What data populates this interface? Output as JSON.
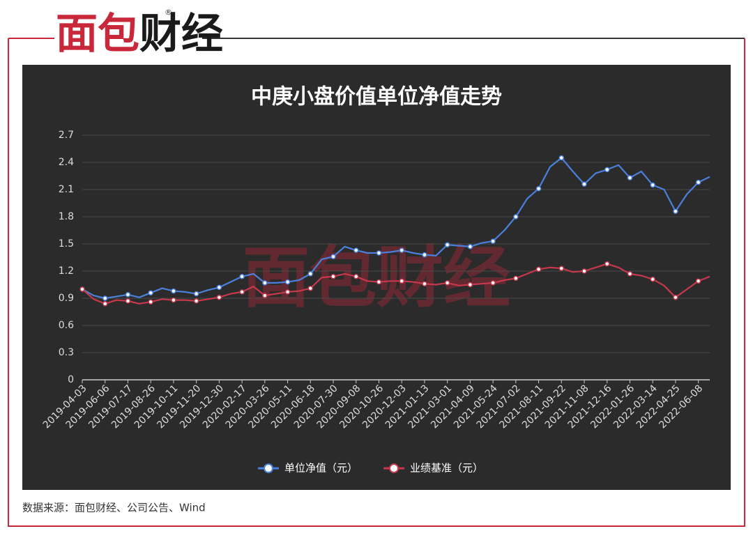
{
  "logo": [
    "面包",
    "财经"
  ],
  "logo_mark": "®",
  "watermark": "面包财经",
  "source": "数据来源：面包财经、公司公告、Wind",
  "chart_data": {
    "type": "line",
    "title": "中庚小盘价值单位净值走势",
    "categories": [
      "2019-04-03",
      null,
      "2019-06-06",
      null,
      "2019-07-17",
      null,
      "2019-08-26",
      null,
      "2019-10-11",
      null,
      "2019-11-20",
      null,
      "2019-12-30",
      null,
      "2020-02-17",
      null,
      "2020-03-26",
      null,
      "2020-05-11",
      null,
      "2020-06-18",
      null,
      "2020-07-30",
      null,
      "2020-09-08",
      null,
      "2020-10-26",
      null,
      "2020-12-03",
      null,
      "2021-01-13",
      null,
      "2021-03-01",
      null,
      "2021-04-09",
      null,
      "2021-05-24",
      null,
      "2021-07-02",
      null,
      "2021-08-11",
      null,
      "2021-09-22",
      null,
      "2021-11-08",
      null,
      "2021-12-16",
      null,
      "2022-01-26",
      null,
      "2022-03-14",
      null,
      "2022-04-25",
      null,
      "2022-06-08",
      null
    ],
    "series": [
      {
        "name": "单位净值（元）",
        "color": "#4a80dc",
        "values": [
          1.0,
          0.93,
          0.9,
          0.92,
          0.94,
          0.91,
          0.96,
          1.01,
          0.98,
          0.97,
          0.95,
          0.99,
          1.02,
          1.08,
          1.14,
          1.17,
          1.07,
          1.07,
          1.08,
          1.1,
          1.17,
          1.33,
          1.36,
          1.47,
          1.43,
          1.4,
          1.4,
          1.41,
          1.43,
          1.4,
          1.38,
          1.37,
          1.49,
          1.48,
          1.47,
          1.51,
          1.53,
          1.65,
          1.8,
          2.0,
          2.11,
          2.35,
          2.45,
          2.3,
          2.16,
          2.28,
          2.32,
          2.37,
          2.23,
          2.3,
          2.15,
          2.1,
          1.86,
          2.05,
          2.18,
          2.24
        ]
      },
      {
        "name": "业绩基准（元）",
        "color": "#c8384c",
        "values": [
          1.0,
          0.89,
          0.84,
          0.88,
          0.87,
          0.84,
          0.86,
          0.89,
          0.88,
          0.88,
          0.87,
          0.89,
          0.91,
          0.95,
          0.97,
          1.03,
          0.93,
          0.95,
          0.97,
          0.98,
          1.01,
          1.13,
          1.14,
          1.17,
          1.14,
          1.09,
          1.08,
          1.09,
          1.09,
          1.08,
          1.06,
          1.05,
          1.07,
          1.04,
          1.05,
          1.06,
          1.07,
          1.1,
          1.12,
          1.17,
          1.22,
          1.24,
          1.23,
          1.19,
          1.2,
          1.24,
          1.28,
          1.24,
          1.17,
          1.15,
          1.11,
          1.04,
          0.91,
          1.0,
          1.09,
          1.14
        ]
      }
    ],
    "ylim": [
      0,
      2.7
    ],
    "yticks": [
      0,
      0.3,
      0.6,
      0.9,
      1.2,
      1.5,
      1.8,
      2.1,
      2.4,
      2.7
    ],
    "grid": true
  }
}
